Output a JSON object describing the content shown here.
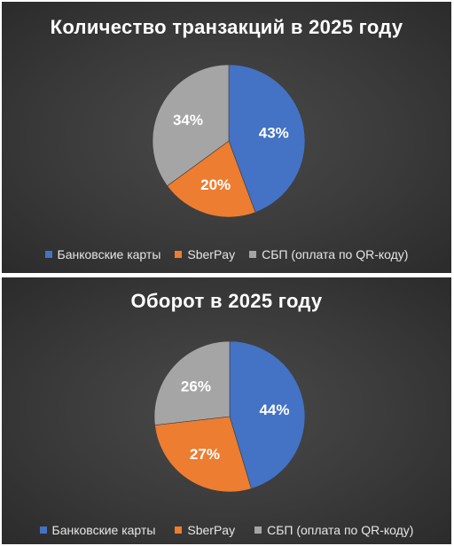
{
  "colors": {
    "bank_cards": "#4472c4",
    "sberpay": "#ed7d31",
    "sbp": "#a5a5a5",
    "label_text": "#ffffff"
  },
  "chart_data": [
    {
      "type": "pie",
      "title": "Количество транзакций в 2025 году",
      "categories": [
        "Банковские карты",
        "SberPay",
        "СБП (оплата по QR-коду)"
      ],
      "values": [
        43,
        20,
        34
      ],
      "data_labels": [
        "43%",
        "20%",
        "34%"
      ],
      "legend_position": "bottom"
    },
    {
      "type": "pie",
      "title": "Оборот в 2025 году",
      "categories": [
        "Банковские карты",
        "SberPay",
        "СБП (оплата по QR-коду)"
      ],
      "values": [
        44,
        27,
        26
      ],
      "data_labels": [
        "44%",
        "27%",
        "26%"
      ],
      "legend_position": "bottom"
    }
  ]
}
